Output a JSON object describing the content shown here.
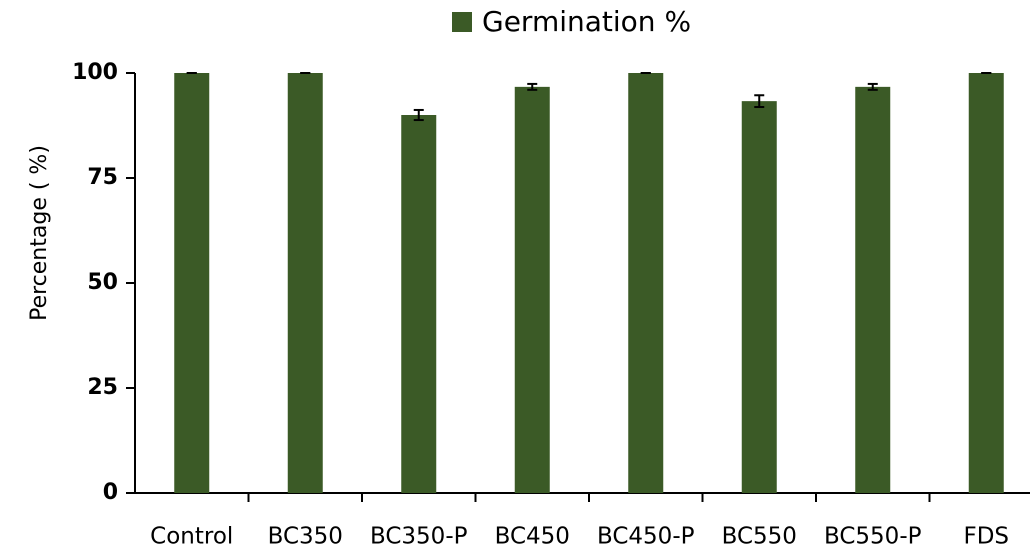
{
  "chart_data": {
    "type": "bar",
    "legend_title": "Germination %",
    "ylabel": "Percentage ( %)",
    "categories": [
      "Control",
      "BC350",
      "BC350-P",
      "BC450",
      "BC450-P",
      "BC550",
      "BC550-P",
      "FDS"
    ],
    "series": [
      {
        "name": "Germination %",
        "color": "#3b5a26",
        "values": [
          100,
          100,
          90,
          96.7,
          100,
          93.3,
          96.7,
          100
        ],
        "errors": [
          0,
          0,
          1.2,
          0.7,
          0,
          1.4,
          0.7,
          0
        ]
      }
    ],
    "ylim": [
      0,
      100
    ],
    "yticks": [
      0,
      25,
      50,
      75,
      100
    ],
    "grid": false,
    "legend": "top"
  }
}
